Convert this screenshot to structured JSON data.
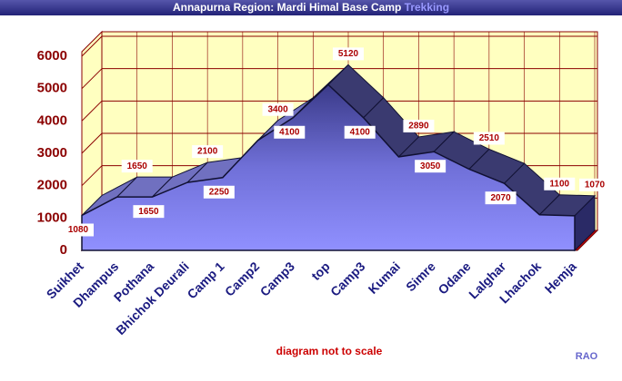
{
  "chart_data": {
    "type": "area",
    "title": "Annapurna Region: Mardi Himal Base Camp",
    "title_accent": "Trekking",
    "note": "diagram not to scale",
    "credit": "RAO",
    "categories": [
      "Suikhet",
      "Dhampus",
      "Pothana",
      "Bhichok Deurali",
      "Camp 1",
      "Camp2",
      "Camp3",
      "top",
      "Camp3",
      "Kumai",
      "Simre",
      "Odane",
      "Lalghar",
      "Lhachok",
      "Hemja"
    ],
    "values": [
      1080,
      1650,
      1650,
      2100,
      2250,
      3400,
      4100,
      5120,
      4100,
      2890,
      3050,
      2510,
      2070,
      1100,
      1070
    ],
    "color": "#8080ee",
    "ylim": [
      0,
      6000
    ],
    "yticks": [
      0,
      1000,
      2000,
      3000,
      4000,
      5000,
      6000
    ],
    "grid": true
  }
}
